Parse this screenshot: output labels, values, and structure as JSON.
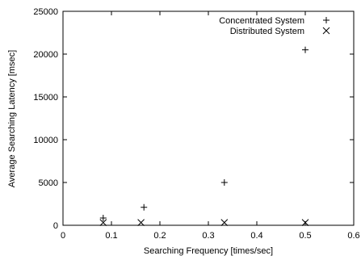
{
  "chart_data": {
    "type": "scatter",
    "xlabel": "Searching Frequency [times/sec]",
    "ylabel": "Average Searching Latency [msec]",
    "xlim": [
      0,
      0.6
    ],
    "ylim": [
      0,
      25000
    ],
    "xticks": [
      0,
      0.1,
      0.2,
      0.3,
      0.4,
      0.5,
      0.6
    ],
    "xtick_labels": [
      "0",
      "0.1",
      "0.2",
      "0.3",
      "0.4",
      "0.5",
      "0.6"
    ],
    "yticks": [
      0,
      5000,
      10000,
      15000,
      20000,
      25000
    ],
    "ytick_labels": [
      "0",
      "5000",
      "10000",
      "15000",
      "20000",
      "25000"
    ],
    "grid": false,
    "legend_position": "top-right",
    "series": [
      {
        "name": "Concentrated System",
        "marker": "plus",
        "color": "#000000",
        "points": [
          [
            0.083,
            850
          ],
          [
            0.167,
            2100
          ],
          [
            0.333,
            5000
          ],
          [
            0.5,
            20500
          ]
        ]
      },
      {
        "name": "Distributed System",
        "marker": "cross",
        "color": "#000000",
        "points": [
          [
            0.083,
            320
          ],
          [
            0.161,
            320
          ],
          [
            0.333,
            320
          ],
          [
            0.5,
            320
          ]
        ]
      }
    ]
  }
}
